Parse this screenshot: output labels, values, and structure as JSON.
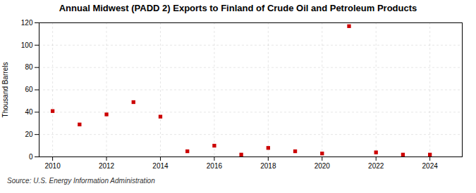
{
  "chart_data": {
    "type": "scatter",
    "title": "Annual Midwest (PADD 2) Exports to Finland of Crude Oil and Petroleum Products",
    "ylabel": "Thousand Barrels",
    "source": "Source: U.S. Energy Information Administration",
    "x": [
      2010,
      2011,
      2012,
      2013,
      2014,
      2015,
      2016,
      2017,
      2018,
      2019,
      2020,
      2021,
      2022,
      2023,
      2024
    ],
    "values": [
      41,
      29,
      38,
      49,
      36,
      5,
      10,
      2,
      8,
      5,
      3,
      117,
      4,
      2,
      2
    ],
    "color": "#cc0000",
    "marker": "square",
    "xlim": [
      2009.5,
      2025.2
    ],
    "xticks": [
      2010,
      2012,
      2014,
      2016,
      2018,
      2020,
      2022,
      2024
    ],
    "ylim": [
      0,
      120
    ],
    "yticks": [
      0,
      20,
      40,
      60,
      80,
      100,
      120
    ],
    "grid": true
  }
}
